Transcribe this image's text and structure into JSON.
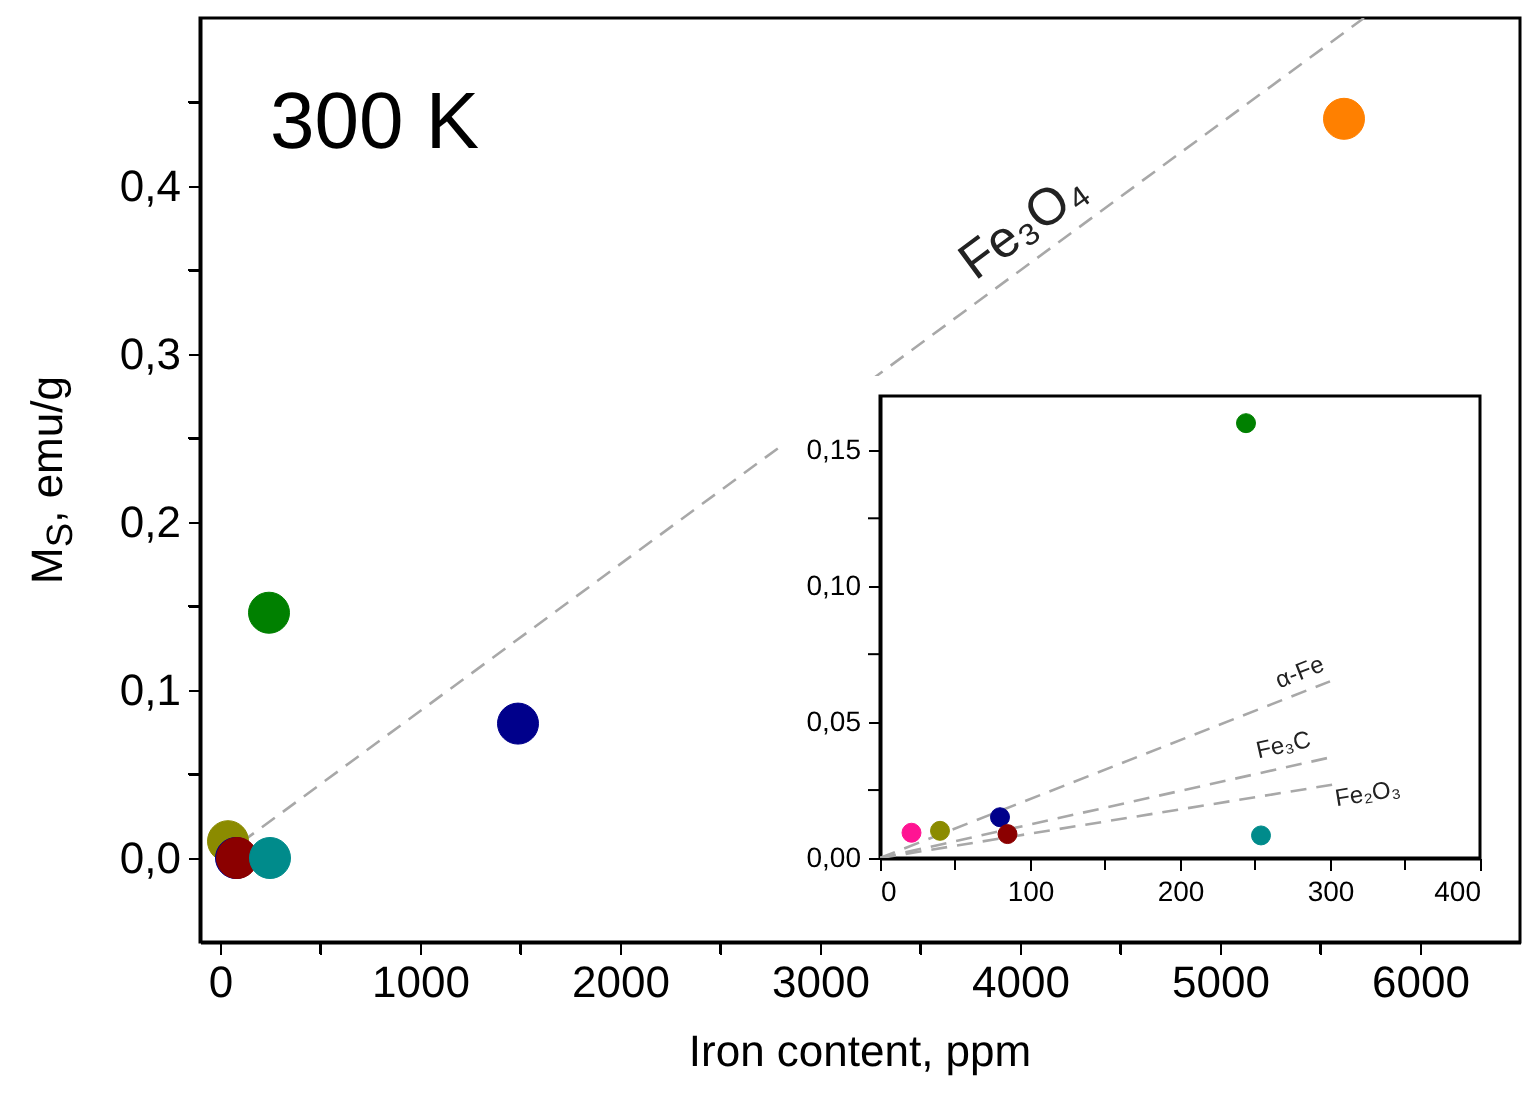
{
  "chart_data": [
    {
      "type": "scatter",
      "xlabel": "Iron content, ppm",
      "ylabel": "M$_{S}$, emu/g",
      "xlim": [
        -100,
        6500
      ],
      "xticks": [
        0,
        {
          "value": 500,
          "label": null
        },
        1000,
        {
          "value": 1500,
          "label": null
        },
        2000,
        {
          "value": 2500,
          "label": null
        },
        3000,
        {
          "value": 3500,
          "label": null
        },
        4000,
        {
          "value": 4500,
          "label": null
        },
        5000,
        {
          "value": 5500,
          "label": null
        },
        6000
      ],
      "ylim": [
        -0.05,
        0.5
      ],
      "yticks": [
        {
          "value": 0,
          "label": "0,0"
        },
        {
          "value": 0.05,
          "label": null
        },
        {
          "value": 0.1,
          "label": "0,1"
        },
        {
          "value": 0.15,
          "label": null
        },
        {
          "value": 0.2,
          "label": "0,2"
        },
        {
          "value": 0.25,
          "label": null
        },
        {
          "value": 0.3,
          "label": "0,3"
        },
        {
          "value": 0.35,
          "label": null
        },
        {
          "value": 0.4,
          "label": "0,4"
        },
        {
          "value": 0.45,
          "label": null
        }
      ],
      "grid": false,
      "marker": "circle",
      "annotations": [
        "300 K",
        "Fe₃O₄"
      ],
      "series": [
        {
          "type": "line",
          "color": "#a8a8a8",
          "line_style": "dashed",
          "marker": "none",
          "x": [
            0,
            5720
          ],
          "values": [
            0,
            0.5
          ]
        },
        {
          "color": "#8b8b00",
          "x": [
            40
          ],
          "values": [
            0.01
          ]
        },
        {
          "color": "#00008b",
          "x": [
            80
          ],
          "values": [
            0.0
          ]
        },
        {
          "color": "#8b0000",
          "x": [
            85
          ],
          "values": [
            0.0
          ]
        },
        {
          "color": "#008b8b",
          "x": [
            250
          ],
          "values": [
            0.0
          ]
        },
        {
          "color": "#008000",
          "x": [
            245
          ],
          "values": [
            0.146
          ]
        },
        {
          "color": "#00008b",
          "x": [
            1490
          ],
          "values": [
            0.08
          ]
        },
        {
          "color": "#ff8000",
          "x": [
            5620
          ],
          "values": [
            0.44
          ]
        }
      ]
    },
    {
      "type": "scatter",
      "xlim": [
        0,
        400
      ],
      "xticks": [
        0,
        {
          "value": 50,
          "label": null
        },
        100,
        {
          "value": 150,
          "label": null
        },
        200,
        {
          "value": 250,
          "label": null
        },
        300,
        {
          "value": 350,
          "label": null
        },
        400
      ],
      "ylim": [
        0,
        0.17
      ],
      "yticks": [
        {
          "value": 0,
          "label": "0,00"
        },
        {
          "value": 0.025,
          "label": null
        },
        {
          "value": 0.05,
          "label": "0,05"
        },
        {
          "value": 0.075,
          "label": null
        },
        {
          "value": 0.1,
          "label": "0,10"
        },
        {
          "value": 0.125,
          "label": null
        },
        {
          "value": 0.15,
          "label": "0,15"
        }
      ],
      "grid": false,
      "marker": "circle",
      "annotations": [
        {
          "text": "α-Fe",
          "x": 300,
          "y": 0.065
        },
        {
          "text": "Fe₃C",
          "x": 290,
          "y": 0.036
        },
        {
          "text": "Fe₂O₃",
          "x": 302,
          "y": 0.027
        }
      ],
      "series": [
        {
          "type": "line",
          "color": "#a8a8a8",
          "line_style": "dashed",
          "marker": "none",
          "x": [
            0,
            300
          ],
          "values": [
            0,
            0.065
          ]
        },
        {
          "type": "line",
          "color": "#a8a8a8",
          "line_style": "dashed",
          "marker": "none",
          "x": [
            0,
            300
          ],
          "values": [
            0,
            0.037
          ]
        },
        {
          "type": "line",
          "color": "#a8a8a8",
          "line_style": "dashed",
          "marker": "none",
          "x": [
            0,
            302
          ],
          "values": [
            0,
            0.027
          ]
        },
        {
          "color": "#ff1493",
          "x": [
            21
          ],
          "values": [
            0.0093
          ]
        },
        {
          "color": "#8b8b00",
          "x": [
            40
          ],
          "values": [
            0.01
          ]
        },
        {
          "color": "#00008b",
          "x": [
            80
          ],
          "values": [
            0.015
          ]
        },
        {
          "color": "#8b0000",
          "x": [
            85
          ],
          "values": [
            0.0088
          ]
        },
        {
          "color": "#008b8b",
          "x": [
            254
          ],
          "values": [
            0.0083
          ]
        },
        {
          "color": "#008000",
          "x": [
            244
          ],
          "values": [
            0.16
          ]
        }
      ]
    }
  ]
}
